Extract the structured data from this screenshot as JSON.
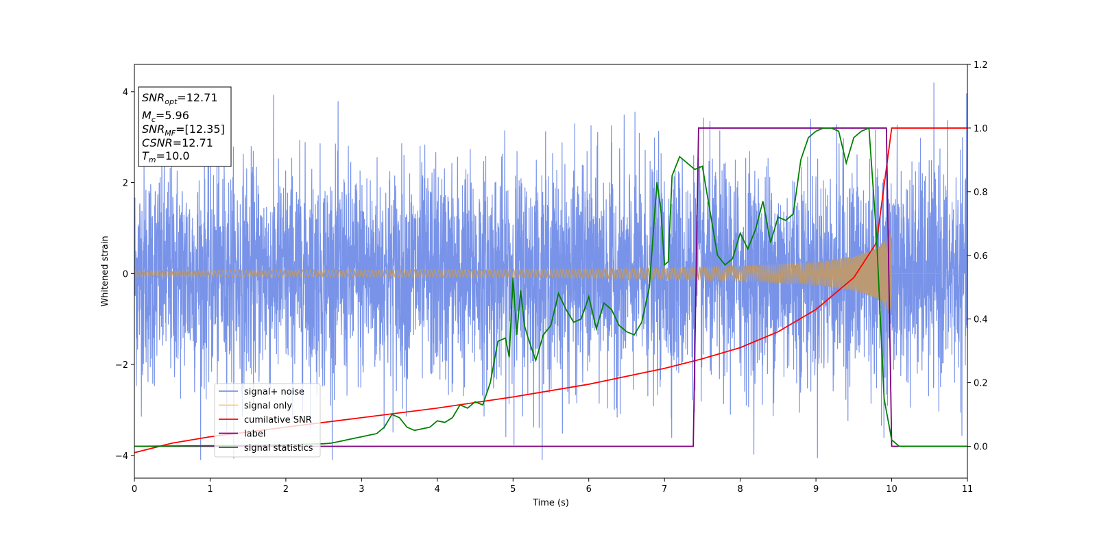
{
  "chart_data": {
    "type": "line",
    "xlabel": "Time (s)",
    "ylabel": "Whitened strain",
    "xlim": [
      0,
      11
    ],
    "ylim": [
      -4.5,
      4.6
    ],
    "y2lim": [
      -0.1,
      1.2
    ],
    "x_ticks": [
      "0",
      "1",
      "2",
      "3",
      "4",
      "5",
      "6",
      "7",
      "8",
      "9",
      "10",
      "11"
    ],
    "x_tick_values": [
      0,
      1,
      2,
      3,
      4,
      5,
      6,
      7,
      8,
      9,
      10,
      11
    ],
    "y_ticks": [
      "−4",
      "−2",
      "0",
      "2",
      "4"
    ],
    "y_tick_values": [
      -4,
      -2,
      0,
      2,
      4
    ],
    "y2_ticks": [
      "0.0",
      "0.2",
      "0.4",
      "0.6",
      "0.8",
      "1.0",
      "1.2"
    ],
    "y2_tick_values": [
      0,
      0.2,
      0.4,
      0.6,
      0.8,
      1.0,
      1.2
    ],
    "grid": false,
    "legend_position": "lower-left",
    "legend": [
      {
        "label": "signal+ noise",
        "color": "#7893e8"
      },
      {
        "label": "signal only",
        "color": "#ffc86e"
      },
      {
        "label": "cumilative SNR",
        "color": "#ff0000"
      },
      {
        "label": "label",
        "color": "#800080"
      },
      {
        "label": "signal statistics",
        "color": "#008000"
      }
    ],
    "annotation": {
      "lines": [
        {
          "base": "SNR",
          "sub": "opt",
          "rest": "=12.71"
        },
        {
          "base": "M",
          "sub": "c",
          "rest": "=5.96"
        },
        {
          "base": "SNR",
          "sub": "MF",
          "rest": "=[12.35]"
        },
        {
          "base": "CSNR",
          "sub": "",
          "rest": "=12.71"
        },
        {
          "base": "T",
          "sub": "m",
          "rest": "=10.0"
        }
      ]
    },
    "series": [
      {
        "name": "signal+ noise",
        "axis": "left",
        "color": "#7893e8",
        "description_values": {
          "noise_amplitude_typical": 1.2,
          "peak_range": [
            -4.1,
            4.2
          ],
          "duration": 11
        }
      },
      {
        "name": "signal only",
        "axis": "left",
        "color": "#bb9a73",
        "envelope": {
          "t": [
            0,
            1,
            2,
            3,
            4,
            5,
            6,
            7,
            8,
            9,
            9.5,
            9.8,
            10.0
          ],
          "amp": [
            0.07,
            0.07,
            0.075,
            0.08,
            0.085,
            0.09,
            0.1,
            0.12,
            0.16,
            0.25,
            0.38,
            0.55,
            0.9
          ]
        },
        "end_time": 10.0
      },
      {
        "name": "cumilative SNR",
        "axis": "right",
        "color": "#ff0000",
        "x": [
          0,
          0.5,
          1,
          2,
          3,
          4,
          5,
          6,
          7,
          7.5,
          8,
          8.5,
          9,
          9.5,
          9.8,
          10.0,
          10.01,
          11
        ],
        "y": [
          -0.02,
          0.01,
          0.03,
          0.06,
          0.09,
          0.12,
          0.155,
          0.195,
          0.245,
          0.275,
          0.31,
          0.36,
          0.43,
          0.53,
          0.64,
          1.0,
          1.0,
          1.0
        ]
      },
      {
        "name": "label",
        "axis": "right",
        "color": "#800080",
        "x": [
          0,
          7.38,
          7.45,
          9.93,
          10.0,
          11
        ],
        "y": [
          0,
          0,
          1,
          1,
          0,
          0
        ]
      },
      {
        "name": "signal statistics",
        "axis": "right",
        "color": "#008000",
        "x": [
          0,
          0.5,
          1,
          1.5,
          2,
          2.5,
          2.6,
          2.7,
          2.8,
          2.9,
          3.0,
          3.1,
          3.2,
          3.3,
          3.4,
          3.5,
          3.6,
          3.7,
          3.8,
          3.9,
          4.0,
          4.1,
          4.2,
          4.3,
          4.4,
          4.5,
          4.6,
          4.7,
          4.8,
          4.9,
          4.95,
          5.0,
          5.05,
          5.1,
          5.15,
          5.2,
          5.3,
          5.4,
          5.5,
          5.6,
          5.7,
          5.8,
          5.9,
          6.0,
          6.1,
          6.2,
          6.3,
          6.4,
          6.5,
          6.6,
          6.7,
          6.8,
          6.9,
          6.95,
          7.0,
          7.05,
          7.1,
          7.2,
          7.3,
          7.4,
          7.5,
          7.6,
          7.7,
          7.8,
          7.9,
          8.0,
          8.1,
          8.2,
          8.3,
          8.4,
          8.5,
          8.6,
          8.7,
          8.8,
          8.9,
          9.0,
          9.1,
          9.2,
          9.3,
          9.4,
          9.5,
          9.6,
          9.7,
          9.8,
          9.9,
          10.0,
          10.1,
          11
        ],
        "y": [
          0,
          0.001,
          0.002,
          0.003,
          0.005,
          0.008,
          0.01,
          0.015,
          0.02,
          0.025,
          0.03,
          0.035,
          0.04,
          0.06,
          0.1,
          0.09,
          0.06,
          0.05,
          0.055,
          0.06,
          0.08,
          0.075,
          0.09,
          0.13,
          0.12,
          0.14,
          0.13,
          0.2,
          0.33,
          0.34,
          0.28,
          0.53,
          0.35,
          0.49,
          0.38,
          0.34,
          0.27,
          0.35,
          0.38,
          0.48,
          0.43,
          0.39,
          0.4,
          0.47,
          0.37,
          0.45,
          0.43,
          0.38,
          0.36,
          0.35,
          0.39,
          0.5,
          0.83,
          0.75,
          0.57,
          0.58,
          0.85,
          0.91,
          0.89,
          0.87,
          0.88,
          0.74,
          0.6,
          0.57,
          0.59,
          0.67,
          0.62,
          0.68,
          0.77,
          0.64,
          0.72,
          0.71,
          0.73,
          0.9,
          0.97,
          0.99,
          1.0,
          1.0,
          0.99,
          0.89,
          0.97,
          0.99,
          1.0,
          0.66,
          0.15,
          0.02,
          0.0,
          0.0
        ]
      }
    ]
  }
}
